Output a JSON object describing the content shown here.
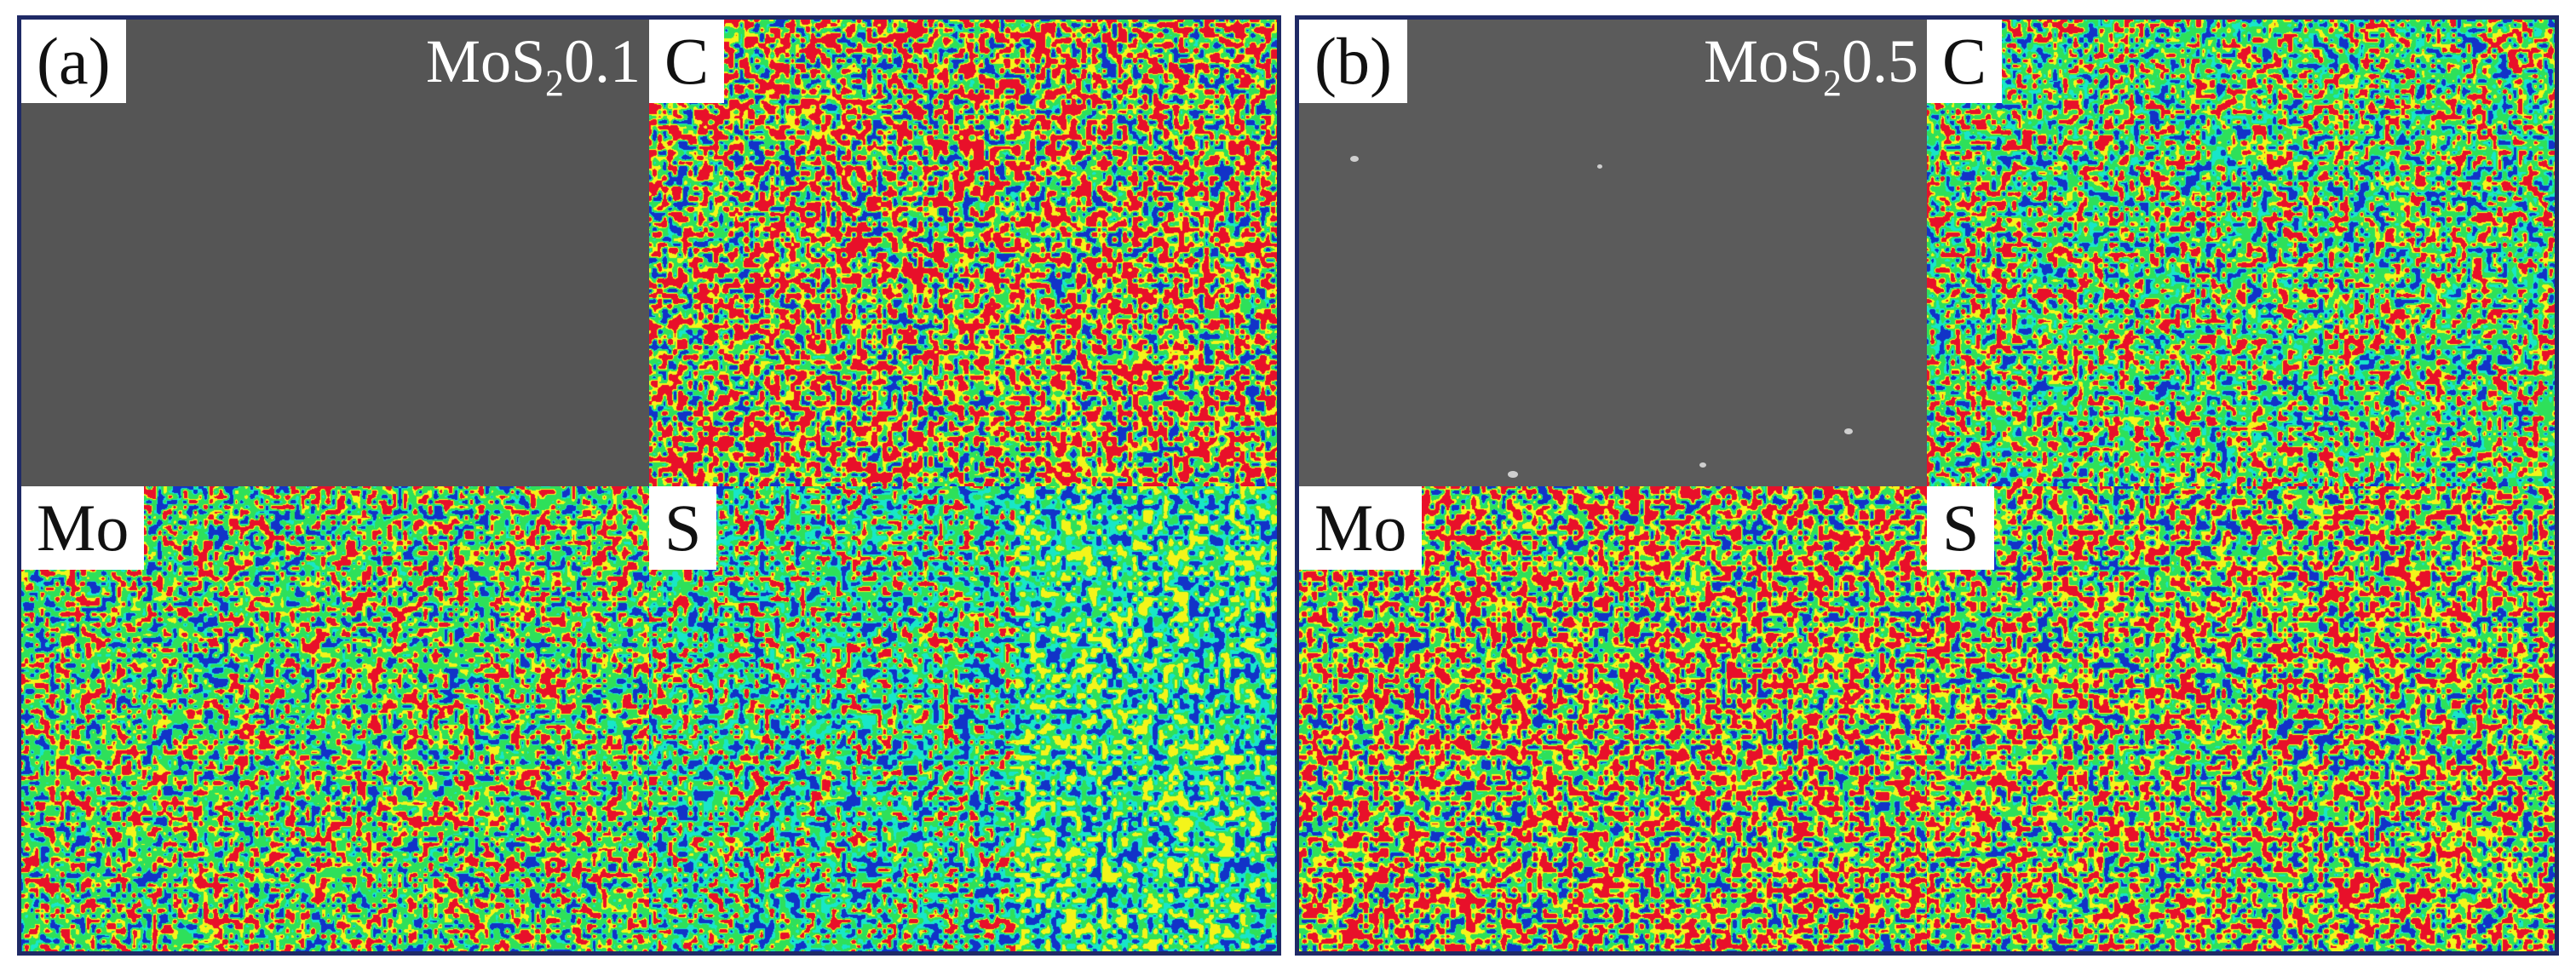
{
  "panels": [
    {
      "tag": "(a)",
      "sample_prefix": "MoS",
      "sample_sub": "2",
      "sample_suffix": "0.1",
      "maps": {
        "C": "C",
        "Mo": "Mo",
        "S": "S"
      }
    },
    {
      "tag": "(b)",
      "sample_prefix": "MoS",
      "sample_sub": "2",
      "sample_suffix": "0.5",
      "maps": {
        "C": "C",
        "Mo": "Mo",
        "S": "S"
      }
    }
  ],
  "colors": {
    "frame": "#1f2a66",
    "map_red": "#e8102a",
    "map_yellow": "#f4f41a",
    "map_green": "#2ee05a",
    "map_cyan": "#18e6c8",
    "map_blue": "#1233c8",
    "sem_gray": "#555555"
  }
}
